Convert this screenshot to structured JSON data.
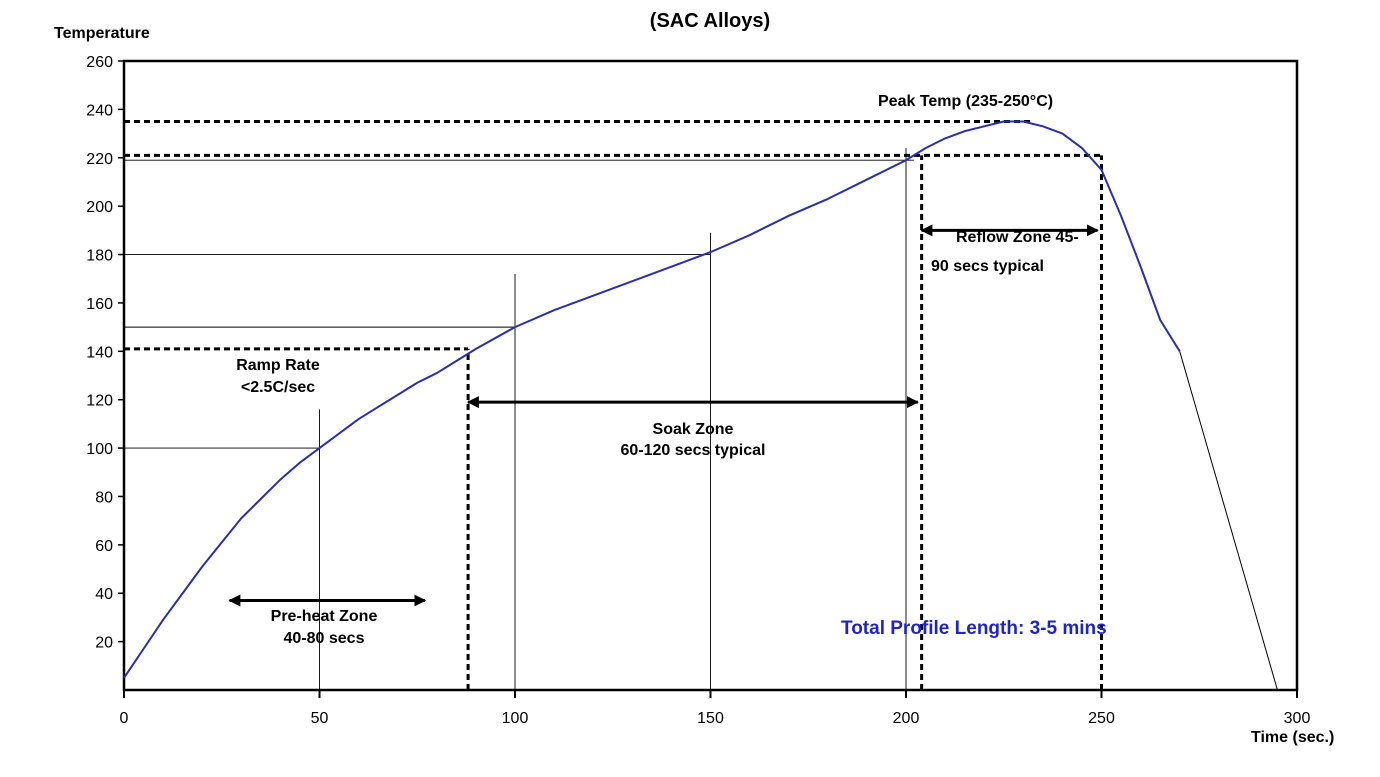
{
  "chart_data": {
    "type": "line",
    "title": "(SAC Alloys)",
    "ylabel": "Temperature",
    "xlabel": "Time (sec.)",
    "xlim": [
      0,
      300
    ],
    "ylim": [
      0,
      260
    ],
    "x_ticks": [
      0,
      50,
      100,
      150,
      200,
      250,
      300
    ],
    "y_ticks": [
      20,
      40,
      60,
      80,
      100,
      120,
      140,
      160,
      180,
      200,
      220,
      240,
      260
    ],
    "series": [
      {
        "color": "#2b2fa8",
        "x": [
          0,
          5,
          10,
          15,
          20,
          25,
          30,
          35,
          40,
          45,
          50,
          55,
          60,
          65,
          70,
          75,
          80,
          85,
          90,
          100,
          110,
          120,
          130,
          140,
          150,
          160,
          170,
          180,
          190,
          200,
          205,
          210,
          215,
          220,
          225,
          230,
          235,
          240,
          245,
          250,
          255,
          260,
          265,
          270
        ],
        "y": [
          5,
          17,
          29,
          40,
          51,
          61,
          71,
          79,
          87,
          94,
          100,
          106,
          112,
          117,
          122,
          127,
          131,
          136,
          141,
          150,
          157,
          163,
          169,
          175,
          181,
          188,
          196,
          203,
          211,
          219,
          224,
          228,
          231,
          233,
          235,
          235,
          233,
          230,
          224,
          215,
          196,
          175,
          153,
          140
        ]
      }
    ],
    "cooling_line": {
      "x": [
        270,
        295
      ],
      "y": [
        140,
        0
      ]
    },
    "guides": [
      {
        "type": "dashed-h",
        "y": 235,
        "x": [
          0,
          232
        ]
      },
      {
        "type": "dashed-h",
        "y": 221,
        "x": [
          0,
          250
        ]
      },
      {
        "type": "dashed-h",
        "y": 141,
        "x": [
          0,
          88
        ]
      },
      {
        "type": "dashed-v",
        "x": 88,
        "y": [
          0,
          141
        ]
      },
      {
        "type": "dashed-v",
        "x": 204,
        "y": [
          0,
          221
        ]
      },
      {
        "type": "dashed-v",
        "x": 250,
        "y": [
          0,
          221
        ]
      },
      {
        "type": "thin-h",
        "y": 219,
        "x": [
          0,
          202
        ]
      },
      {
        "type": "thin-h",
        "y": 180,
        "x": [
          0,
          150
        ]
      },
      {
        "type": "thin-h",
        "y": 150,
        "x": [
          0,
          100
        ]
      },
      {
        "type": "thin-h",
        "y": 100,
        "x": [
          0,
          50
        ]
      },
      {
        "type": "thin-v",
        "x": 50,
        "y": [
          0,
          116
        ]
      },
      {
        "type": "thin-v",
        "x": 100,
        "y": [
          0,
          172
        ]
      },
      {
        "type": "thin-v",
        "x": 150,
        "y": [
          0,
          189
        ]
      },
      {
        "type": "thin-v",
        "x": 200,
        "y": [
          0,
          224
        ]
      }
    ],
    "arrows": [
      {
        "name": "preheat-arrow",
        "x": [
          27,
          77
        ],
        "y": 37
      },
      {
        "name": "soak-arrow",
        "x": [
          88,
          203
        ],
        "y": 119
      },
      {
        "name": "reflow-arrow",
        "x": [
          204,
          249
        ],
        "y": 190
      }
    ],
    "annotations": {
      "peak_temp": "Peak Temp (235-250°C)",
      "ramp_rate_1": "Ramp Rate",
      "ramp_rate_2": "<2.5C/sec",
      "soak_zone_1": "Soak Zone",
      "soak_zone_2": "60-120 secs typical",
      "reflow_zone_1": "Reflow Zone 45-",
      "reflow_zone_2": "90 secs typical",
      "preheat_zone_1": "Pre-heat Zone",
      "preheat_zone_2": "40-80 secs",
      "total_length": "Total Profile Length: 3-5 mins"
    },
    "grid": false,
    "colors": {
      "curve": "#2b2fa8",
      "total_text": "#1f24c8"
    }
  }
}
